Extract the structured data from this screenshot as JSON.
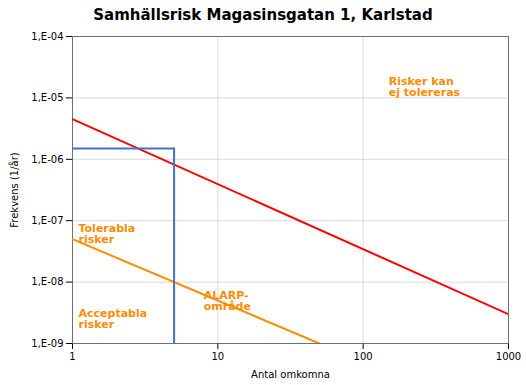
{
  "chart_data": {
    "type": "line",
    "title": "Samhällsrisk Magasinsgatan 1, Karlstad",
    "x_label": "Antal omkomna",
    "y_label": "Frekvens (1/år)",
    "log": true,
    "grid": true,
    "xlim": [
      1,
      1000
    ],
    "ylim": [
      1e-09,
      0.0001
    ],
    "xticks": [
      1,
      10,
      100,
      1000
    ],
    "yticks": [
      {
        "value": 1e-09,
        "label": "1,E-09"
      },
      {
        "value": 1e-08,
        "label": "1,E-08"
      },
      {
        "value": 1e-07,
        "label": "1,E-07"
      },
      {
        "value": 1e-06,
        "label": "1,E-06"
      },
      {
        "value": 1e-05,
        "label": "1,E-05"
      },
      {
        "value": 0.0001,
        "label": "1,E-04"
      }
    ],
    "series": [
      {
        "color": "#FF0000",
        "x": [
          1,
          1000
        ],
        "values": [
          4.5e-06,
          3e-09
        ]
      },
      {
        "color": "#FF8C00",
        "x": [
          1,
          50
        ],
        "values": [
          5e-08,
          1e-09
        ]
      },
      {
        "color": "#4472C4",
        "x": [
          1,
          5
        ],
        "values": [
          1.5e-06,
          1.5e-06
        ]
      },
      {
        "color": "#4472C4",
        "x": [
          5,
          5
        ],
        "values": [
          1.5e-06,
          1e-09
        ]
      }
    ],
    "annotations": [
      {
        "text": "Risker kan\nej tolereras",
        "x": 150,
        "y": 1.5e-05,
        "color": "#FF8C00"
      },
      {
        "text": "Tolerabla\nrisker",
        "x": 1.1,
        "y": 6e-08,
        "color": "#FF8C00"
      },
      {
        "text": "ALARP-\nområde",
        "x": 8,
        "y": 5e-09,
        "color": "#FF8C00"
      },
      {
        "text": "Acceptabla\nrisker",
        "x": 1.1,
        "y": 2.5e-09,
        "color": "#FF8C00"
      }
    ]
  }
}
